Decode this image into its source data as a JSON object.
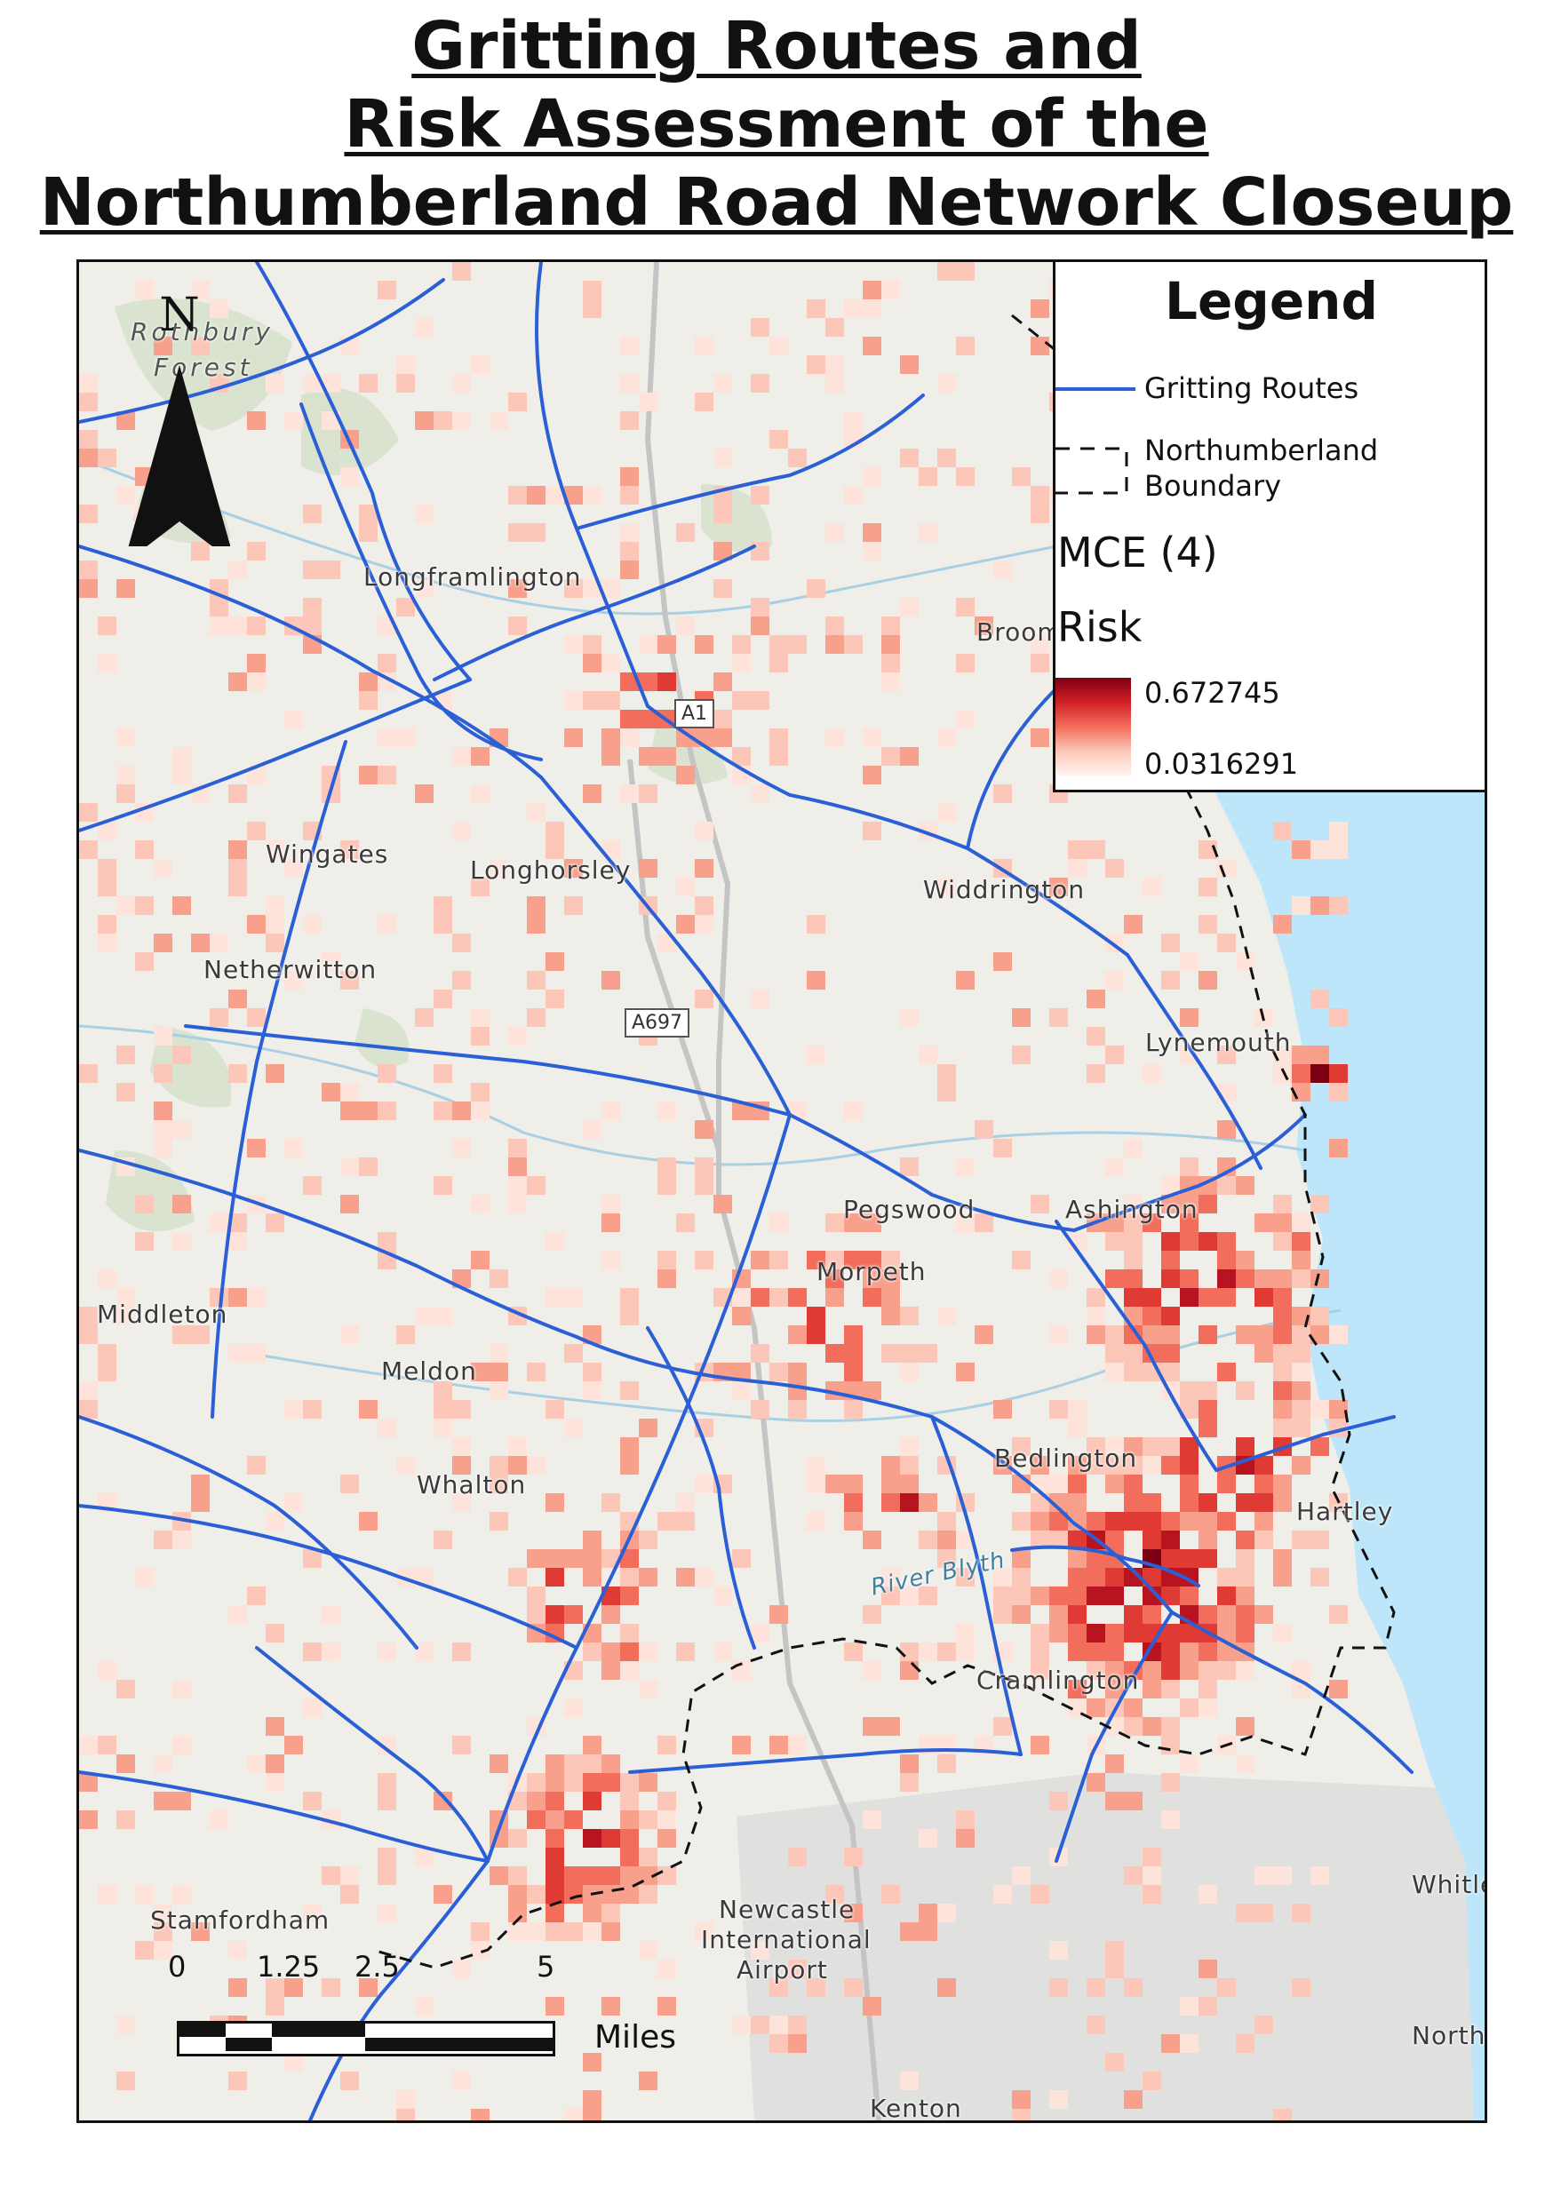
{
  "title_lines": [
    "Gritting Routes and",
    "Risk Assessment of the",
    "Northumberland Road Network Closeup"
  ],
  "north": {
    "letter": "N"
  },
  "places": [
    {
      "name": "Rothbury",
      "style": "ital"
    },
    {
      "name": "Forest",
      "style": "ital"
    },
    {
      "name": "Longframlington",
      "style": ""
    },
    {
      "name": "Wingates",
      "style": ""
    },
    {
      "name": "Longhorsley",
      "style": ""
    },
    {
      "name": "Widdrington",
      "style": ""
    },
    {
      "name": "Netherwitton",
      "style": ""
    },
    {
      "name": "Lynemouth",
      "style": ""
    },
    {
      "name": "Pegswood",
      "style": ""
    },
    {
      "name": "Morpeth",
      "style": ""
    },
    {
      "name": "Middleton",
      "style": ""
    },
    {
      "name": "Meldon",
      "style": ""
    },
    {
      "name": "Whalton",
      "style": ""
    },
    {
      "name": "Bedlington",
      "style": ""
    },
    {
      "name": "River Blyth",
      "style": "water"
    },
    {
      "name": "Cramlington",
      "style": ""
    },
    {
      "name": "Stamfordham",
      "style": ""
    },
    {
      "name": "Newcastle",
      "style": ""
    },
    {
      "name": "International",
      "style": ""
    },
    {
      "name": "Airport",
      "style": ""
    },
    {
      "name": "Kenton",
      "style": ""
    },
    {
      "name": "Whitley",
      "style": ""
    },
    {
      "name": "North",
      "style": ""
    },
    {
      "name": "Ashington",
      "style": ""
    },
    {
      "name": "Hartley",
      "style": ""
    },
    {
      "name": "Broomhill",
      "style": ""
    }
  ],
  "road_shields": [
    "A1",
    "A697"
  ],
  "scale": {
    "ticks": [
      "0",
      "1.25",
      "2.5",
      "5"
    ],
    "units": "Miles"
  },
  "legend": {
    "title": "Legend",
    "routes_label": "Gritting Routes",
    "boundary_label_1": "Northumberland",
    "boundary_label_2": "Boundary",
    "mce_label": "MCE (4)",
    "risk_label": "Risk",
    "risk_max": "0.672745",
    "risk_min": "0.0316291"
  },
  "colors": {
    "routes": "#2a5fd6",
    "sea": "#bde6fa",
    "risk_high": "#7d0012",
    "risk_low": "#fff5f0",
    "boundary": "#111111"
  }
}
